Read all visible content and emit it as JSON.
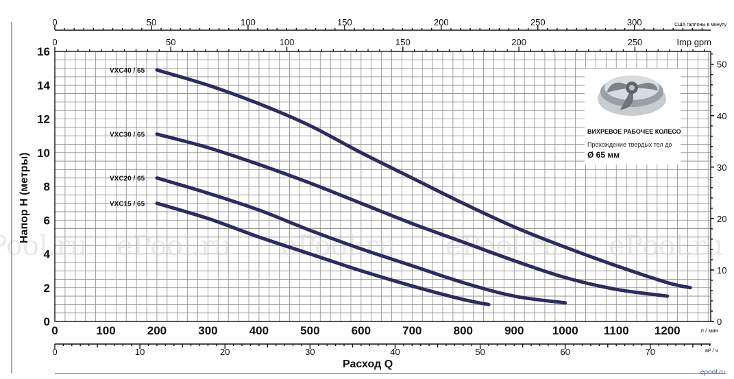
{
  "chart_data": {
    "type": "line",
    "xlabel": "Расход Q",
    "ylabel": "Напор H (метры)",
    "x_unit_main": "л / мин",
    "x_unit_m3h": "м³ / ч",
    "x_unit_imp": "Imp gpm",
    "x_unit_us": "США галлоны в минуту",
    "xlim": [
      0,
      1285
    ],
    "ylim": [
      0,
      16
    ],
    "x_ticks": [
      0,
      100,
      200,
      300,
      400,
      500,
      600,
      700,
      800,
      900,
      1000,
      1100,
      1200
    ],
    "y_ticks": [
      0,
      2,
      4,
      6,
      8,
      10,
      12,
      14,
      16
    ],
    "y_right_ticks": [
      0,
      10,
      20,
      30,
      40,
      50
    ],
    "m3h_ticks": [
      0,
      10,
      20,
      30,
      40,
      50,
      60,
      70
    ],
    "imp_ticks": [
      0,
      50,
      100,
      150,
      200,
      250
    ],
    "us_ticks": [
      0,
      50,
      100,
      150,
      200,
      250,
      300
    ],
    "series": [
      {
        "name": "VXC40 / 65",
        "x": [
          200,
          300,
          400,
          500,
          600,
          700,
          800,
          900,
          1000,
          1100,
          1200,
          1245
        ],
        "y": [
          14.9,
          14.0,
          12.9,
          11.6,
          10.0,
          8.5,
          7.0,
          5.6,
          4.4,
          3.3,
          2.3,
          2.0
        ]
      },
      {
        "name": "VXC30 / 65",
        "x": [
          200,
          300,
          400,
          500,
          600,
          700,
          800,
          900,
          1000,
          1100,
          1200
        ],
        "y": [
          11.1,
          10.3,
          9.3,
          8.2,
          7.0,
          5.8,
          4.7,
          3.6,
          2.6,
          1.9,
          1.5
        ]
      },
      {
        "name": "VXC20 / 65",
        "x": [
          200,
          300,
          400,
          500,
          600,
          700,
          800,
          900,
          1000
        ],
        "y": [
          8.5,
          7.6,
          6.6,
          5.4,
          4.3,
          3.3,
          2.3,
          1.5,
          1.1
        ]
      },
      {
        "name": "VXC15 / 65",
        "x": [
          200,
          300,
          400,
          500,
          600,
          700,
          800,
          850
        ],
        "y": [
          7.0,
          6.1,
          5.0,
          4.0,
          3.0,
          2.1,
          1.3,
          1.0
        ]
      }
    ],
    "grid": true,
    "legend": "inline-left"
  },
  "inset": {
    "title": "ВИХРЕВОЕ РАБОЧЕЕ КОЛЕСО",
    "subtitle": "Прохождение твердых тел до",
    "diameter": "Ø 65 мм"
  },
  "watermark": "ePool.ru",
  "brand": "epool.ru"
}
